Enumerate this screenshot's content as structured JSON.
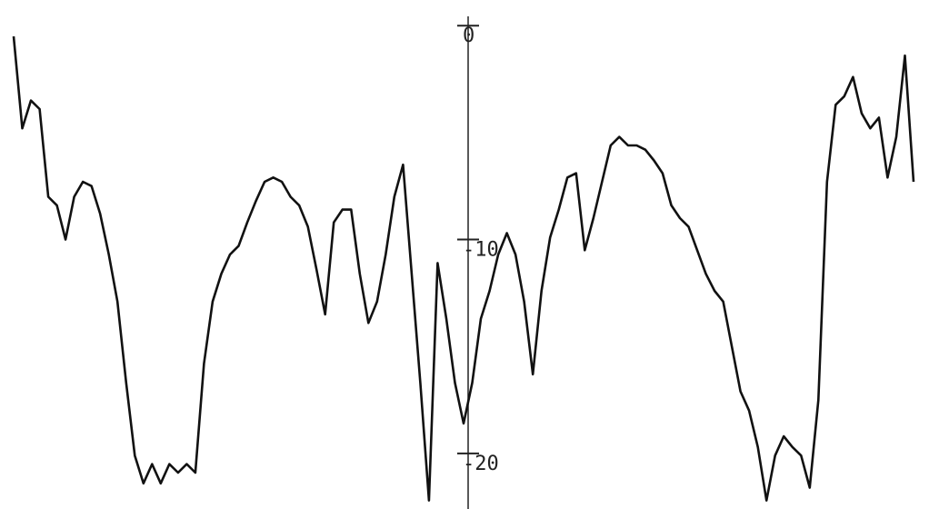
{
  "chart_data": {
    "type": "line",
    "categories": [
      null,
      null,
      null,
      null,
      null,
      null,
      null,
      null,
      null,
      null,
      null,
      null,
      null,
      null,
      null,
      null,
      null,
      null,
      null,
      null,
      null,
      null,
      null,
      null,
      null,
      null,
      null,
      null,
      null,
      null,
      null,
      null,
      null,
      null,
      null,
      null,
      null,
      null,
      null,
      null,
      null,
      null,
      null,
      null,
      null,
      null,
      null,
      null,
      null,
      null,
      null,
      null,
      null,
      null,
      null,
      null,
      null,
      null,
      null,
      null,
      null,
      null,
      null,
      null,
      null,
      null,
      null,
      null,
      null,
      null,
      null,
      null,
      null,
      null,
      null,
      null,
      null,
      null,
      null,
      null,
      null,
      null,
      null,
      null,
      null,
      null,
      null,
      null,
      null,
      null,
      null,
      null,
      null,
      null,
      null,
      null,
      null,
      null,
      null,
      null,
      null,
      null,
      null,
      null,
      null
    ],
    "values": [
      -0.5,
      -4.8,
      -3.5,
      -3.9,
      -8.0,
      -8.4,
      -10.0,
      -8.0,
      -7.3,
      -7.5,
      -8.8,
      -10.7,
      -12.9,
      -16.7,
      -20.1,
      -21.4,
      -20.5,
      -21.4,
      -20.5,
      -20.9,
      -20.5,
      -20.9,
      -15.8,
      -12.9,
      -11.6,
      -10.7,
      -10.3,
      -9.2,
      -8.2,
      -7.3,
      -7.1,
      -7.3,
      -8.0,
      -8.4,
      -9.4,
      -11.4,
      -13.5,
      -9.2,
      -8.6,
      -8.6,
      -11.6,
      -13.9,
      -12.9,
      -10.7,
      -8.0,
      -6.5,
      -11.6,
      -16.7,
      -22.2,
      -11.1,
      -13.7,
      -16.7,
      -18.6,
      -16.7,
      -13.7,
      -12.4,
      -10.7,
      -9.7,
      -10.7,
      -12.9,
      -16.3,
      -12.4,
      -9.9,
      -8.6,
      -7.1,
      -6.9,
      -10.5,
      -9.0,
      -7.3,
      -5.6,
      -5.2,
      -5.6,
      -5.6,
      -5.8,
      -6.3,
      -6.9,
      -8.4,
      -9.0,
      -9.4,
      -10.5,
      -11.6,
      -12.4,
      -12.9,
      -15.0,
      -17.1,
      -18.0,
      -19.7,
      -22.2,
      -20.1,
      -19.2,
      -19.7,
      -20.1,
      -21.6,
      -17.5,
      -7.3,
      -3.7,
      -3.3,
      -2.4,
      -4.1,
      -4.8,
      -4.3,
      -7.1,
      -5.2,
      -1.4,
      -7.3
    ],
    "color": "#111111",
    "ylim": [
      -22.6,
      1.2
    ],
    "yticks": [
      0,
      -10,
      -20
    ]
  }
}
